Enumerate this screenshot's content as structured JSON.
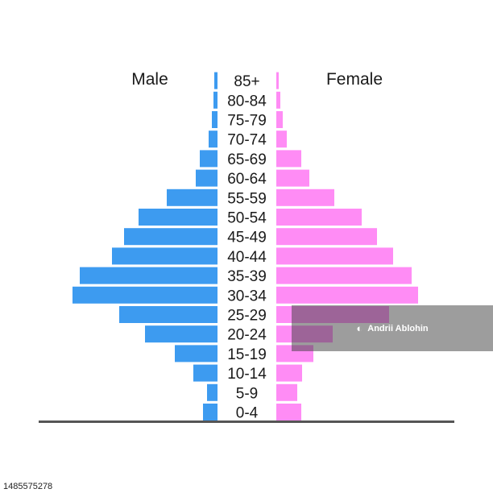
{
  "chart_data": {
    "type": "bar",
    "orientation": "horizontal-pyramid",
    "categories": [
      "0-4",
      "5-9",
      "10-14",
      "15-19",
      "20-24",
      "25-29",
      "30-34",
      "35-39",
      "40-44",
      "45-49",
      "50-54",
      "55-59",
      "60-64",
      "65-69",
      "70-74",
      "75-79",
      "80-84",
      "85+"
    ],
    "series": [
      {
        "name": "Male",
        "color": "#3d9bf0",
        "values": [
          18,
          13,
          30,
          53,
          90,
          122,
          180,
          171,
          131,
          116,
          98,
          63,
          27,
          22,
          11,
          7,
          5,
          4
        ]
      },
      {
        "name": "Female",
        "color": "#ff8cf5",
        "values": [
          31,
          26,
          32,
          46,
          70,
          140,
          176,
          168,
          145,
          125,
          106,
          72,
          41,
          31,
          13,
          8,
          5,
          3
        ]
      }
    ],
    "xlim": [
      0,
      180
    ],
    "grid": false,
    "legend": "none",
    "title": "",
    "xlabel": "",
    "ylabel": ""
  },
  "labels": {
    "male": "Male",
    "female": "Female"
  },
  "watermark": {
    "text": "Andrii Ablohin"
  },
  "stock_id": "1485575278"
}
